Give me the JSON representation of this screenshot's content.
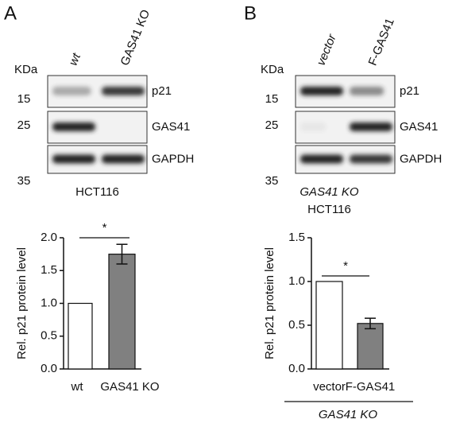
{
  "panels": [
    {
      "letter": "A",
      "kda": "KDa",
      "lanes": [
        "wt",
        "GAS41 KO"
      ],
      "markers": [
        "15",
        "25",
        "35"
      ],
      "proteins": [
        "p21",
        "GAS41",
        "GAPDH"
      ],
      "cell_line": [
        "HCT116"
      ]
    },
    {
      "letter": "B",
      "kda": "KDa",
      "lanes": [
        "vector",
        "F-GAS41"
      ],
      "markers": [
        "15",
        "25",
        "35"
      ],
      "proteins": [
        "p21",
        "GAS41",
        "GAPDH"
      ],
      "cell_line": [
        "GAS41 KO",
        "HCT116"
      ]
    }
  ],
  "chart_data": [
    {
      "type": "bar",
      "y_label": "Rel. p21 protein level",
      "categories": [
        "wt",
        "GAS41 KO"
      ],
      "values": [
        1.0,
        1.75
      ],
      "errors": [
        0,
        0.15
      ],
      "colors": [
        "#ffffff",
        "#808080"
      ],
      "ylim": [
        0,
        2.0
      ],
      "yticks": [
        {
          "value": 0,
          "label": "0.0"
        },
        0.5,
        {
          "value": 1,
          "label": "1.0"
        },
        1.5,
        {
          "value": 2,
          "label": "2.0"
        }
      ],
      "significance": "*"
    },
    {
      "type": "bar",
      "y_label": "Rel. p21 protein level",
      "categories": [
        "vector",
        "F-GAS41"
      ],
      "values": [
        1.0,
        0.52
      ],
      "errors": [
        0,
        0.06
      ],
      "colors": [
        "#ffffff",
        "#808080"
      ],
      "ylim": [
        0,
        1.5
      ],
      "yticks": [
        {
          "value": 0,
          "label": "0.0"
        },
        0.5,
        {
          "value": 1,
          "label": "1.0"
        },
        1.5
      ],
      "significance": "*",
      "group_label": "GAS41 KO"
    }
  ]
}
